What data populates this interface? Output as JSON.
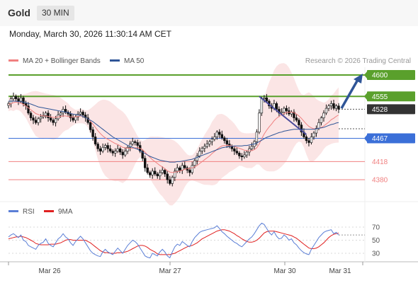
{
  "header": {
    "title": "Gold",
    "timeframe": "30 MIN"
  },
  "date_line": "Monday, March 30, 2026 11:30:14 AM CET",
  "legend": {
    "main": [
      {
        "label": "MA 20 + Bollinger Bands",
        "color": "#f08080"
      },
      {
        "label": "MA 50",
        "color": "#2f5597"
      }
    ],
    "rsi": [
      {
        "label": "RSI",
        "color": "#5b7fd6"
      },
      {
        "label": "9MA",
        "color": "#e02020"
      }
    ]
  },
  "credit": "Research © 2026 Trading Central",
  "colors": {
    "resistance": "#5aa02c",
    "current": "#333333",
    "pivot": "#3b6fd8",
    "support": "#f08080",
    "arrow": "#2f5597",
    "up_candle": "#ffffff",
    "down_candle": "#111111"
  },
  "chart_data": {
    "type": "candlestick",
    "xlabels": [
      "Mar 26",
      "Mar 27",
      "Mar 30",
      "Mar 31"
    ],
    "levels": [
      {
        "price": 4600,
        "label": "4600",
        "kind": "resistance"
      },
      {
        "price": 4555,
        "label": "4555",
        "kind": "resistance"
      },
      {
        "price": 4528,
        "label": "4528",
        "kind": "current"
      },
      {
        "price": 4467,
        "label": "4467",
        "kind": "pivot"
      },
      {
        "price": 4418,
        "label": "4418",
        "kind": "support"
      },
      {
        "price": 4380,
        "label": "4380",
        "kind": "support"
      }
    ],
    "close": [
      4540,
      4550,
      4555,
      4550,
      4545,
      4552,
      4540,
      4535,
      4520,
      4510,
      4505,
      4500,
      4508,
      4512,
      4515,
      4520,
      4510,
      4505,
      4500,
      4508,
      4516,
      4520,
      4528,
      4522,
      4518,
      4510,
      4505,
      4512,
      4518,
      4522,
      4516,
      4510,
      4500,
      4485,
      4470,
      4455,
      4445,
      4440,
      4448,
      4452,
      4445,
      4440,
      4436,
      4440,
      4445,
      4438,
      4432,
      4440,
      4448,
      4455,
      4460,
      4458,
      4452,
      4440,
      4425,
      4405,
      4395,
      4390,
      4398,
      4392,
      4388,
      4395,
      4400,
      4392,
      4380,
      4372,
      4385,
      4398,
      4405,
      4400,
      4410,
      4405,
      4400,
      4395,
      4410,
      4420,
      4430,
      4440,
      4446,
      4450,
      4455,
      4460,
      4465,
      4470,
      4480,
      4475,
      4468,
      4462,
      4455,
      4450,
      4445,
      4440,
      4436,
      4430,
      4428,
      4432,
      4438,
      4445,
      4450,
      4460,
      4480,
      4520,
      4550,
      4552,
      4545,
      4535,
      4530,
      4540,
      4528,
      4520,
      4522,
      4530,
      4525,
      4518,
      4522,
      4510,
      4505,
      4495,
      4480,
      4470,
      4462,
      4458,
      4470,
      4478,
      4488,
      4500,
      4510,
      4520,
      4530,
      4535,
      4540,
      4530,
      4535,
      4528
    ],
    "ma20": [
      4538,
      4540,
      4542,
      4543,
      4542,
      4541,
      4538,
      4535,
      4531,
      4527,
      4523,
      4519,
      4517,
      4515,
      4514,
      4514,
      4513,
      4512,
      4511,
      4511,
      4512,
      4513,
      4514,
      4514,
      4513,
      4512,
      4512,
      4512,
      4513,
      4514,
      4513,
      4511,
      4508,
      4503,
      4497,
      4490,
      4483,
      4477,
      4472,
      4468,
      4465,
      4462,
      4459,
      4456,
      4454,
      4451,
      4448,
      4447,
      4446,
      4446,
      4446,
      4447,
      4447,
      4446,
      4443,
      4438,
      4432,
      4427,
      4422,
      4418,
      4414,
      4410,
      4407,
      4403,
      4399,
      4396,
      4395,
      4396,
      4397,
      4398,
      4400,
      4402,
      4403,
      4404,
      4405,
      4407,
      4410,
      4414,
      4418,
      4422,
      4426,
      4430,
      4435,
      4439,
      4444,
      4448,
      4451,
      4452,
      4452,
      4452,
      4451,
      4450,
      4448,
      4446,
      4444,
      4442,
      4441,
      4441,
      4441,
      4443,
      4447,
      4455,
      4466,
      4476,
      4484,
      4491,
      4497,
      4504,
      4509,
      4513,
      4516,
      4519,
      4521,
      4522,
      4522,
      4521,
      4518,
      4514,
      4509,
      4503,
      4497,
      4492,
      4489,
      4487,
      4487,
      4488,
      4490,
      4493,
      4497,
      4501,
      4506,
      4509,
      4513,
      4516
    ],
    "ma50": [
      4545,
      4545,
      4545,
      4545,
      4544,
      4544,
      4543,
      4542,
      4540,
      4539,
      4537,
      4535,
      4533,
      4532,
      4531,
      4530,
      4529,
      4528,
      4527,
      4526,
      4525,
      4524,
      4523,
      4522,
      4521,
      4519,
      4518,
      4517,
      4516,
      4515,
      4513,
      4511,
      4508,
      4505,
      4502,
      4498,
      4494,
      4490,
      4486,
      4482,
      4478,
      4474,
      4470,
      4467,
      4464,
      4461,
      4458,
      4455,
      4452,
      4450,
      4448,
      4446,
      4444,
      4441,
      4438,
      4435,
      4432,
      4429,
      4427,
      4425,
      4423,
      4421,
      4420,
      4419,
      4418,
      4417,
      4417,
      4417,
      4418,
      4418,
      4419,
      4420,
      4421,
      4422,
      4423,
      4425,
      4427,
      4429,
      4431,
      4433,
      4435,
      4437,
      4439,
      4441,
      4443,
      4445,
      4447,
      4448,
      4449,
      4450,
      4450,
      4451,
      4451,
      4451,
      4451,
      4452,
      4452,
      4453,
      4454,
      4455,
      4457,
      4460,
      4463,
      4466,
      4469,
      4471,
      4473,
      4475,
      4477,
      4479,
      4480,
      4482,
      4483,
      4484,
      4485,
      4486,
      4486,
      4486,
      4486,
      4486,
      4486,
      4486,
      4486,
      4486,
      4487,
      4488,
      4489,
      4490,
      4492,
      4494,
      4496,
      4497,
      4499,
      4500
    ],
    "rsi": [
      55,
      58,
      60,
      57,
      54,
      58,
      50,
      48,
      42,
      40,
      38,
      36,
      42,
      45,
      47,
      52,
      45,
      42,
      40,
      46,
      52,
      55,
      60,
      55,
      52,
      46,
      42,
      48,
      52,
      56,
      52,
      46,
      40,
      34,
      30,
      28,
      26,
      25,
      32,
      36,
      32,
      30,
      28,
      33,
      38,
      34,
      30,
      36,
      42,
      46,
      50,
      48,
      44,
      38,
      32,
      26,
      24,
      23,
      30,
      28,
      26,
      32,
      36,
      32,
      26,
      23,
      32,
      40,
      44,
      42,
      48,
      45,
      42,
      40,
      48,
      54,
      58,
      62,
      64,
      65,
      66,
      67,
      68,
      69,
      72,
      68,
      63,
      60,
      56,
      53,
      50,
      47,
      45,
      42,
      40,
      44,
      48,
      52,
      55,
      60,
      66,
      72,
      76,
      74,
      68,
      62,
      58,
      63,
      56,
      52,
      53,
      58,
      55,
      50,
      52,
      46,
      43,
      38,
      34,
      31,
      29,
      28,
      36,
      42,
      48,
      54,
      58,
      62,
      64,
      65,
      66,
      60,
      62,
      58
    ],
    "rsi9": [
      52,
      53,
      54,
      55,
      55,
      56,
      55,
      54,
      52,
      50,
      48,
      45,
      44,
      43,
      43,
      43,
      43,
      44,
      44,
      44,
      45,
      46,
      48,
      50,
      51,
      51,
      50,
      50,
      50,
      50,
      50,
      50,
      48,
      46,
      43,
      40,
      37,
      34,
      32,
      31,
      31,
      30,
      30,
      30,
      31,
      31,
      31,
      32,
      33,
      35,
      37,
      39,
      41,
      42,
      42,
      41,
      39,
      36,
      34,
      32,
      29,
      28,
      28,
      28,
      28,
      28,
      29,
      30,
      32,
      34,
      36,
      38,
      40,
      41,
      42,
      44,
      46,
      49,
      52,
      54,
      56,
      58,
      60,
      62,
      64,
      65,
      66,
      66,
      65,
      64,
      62,
      60,
      57,
      55,
      52,
      50,
      48,
      47,
      47,
      48,
      50,
      53,
      57,
      61,
      63,
      64,
      64,
      64,
      63,
      62,
      61,
      60,
      59,
      58,
      57,
      55,
      53,
      50,
      47,
      44,
      41,
      38,
      37,
      37,
      38,
      40,
      43,
      46,
      50,
      54,
      57,
      59,
      60,
      61
    ]
  }
}
